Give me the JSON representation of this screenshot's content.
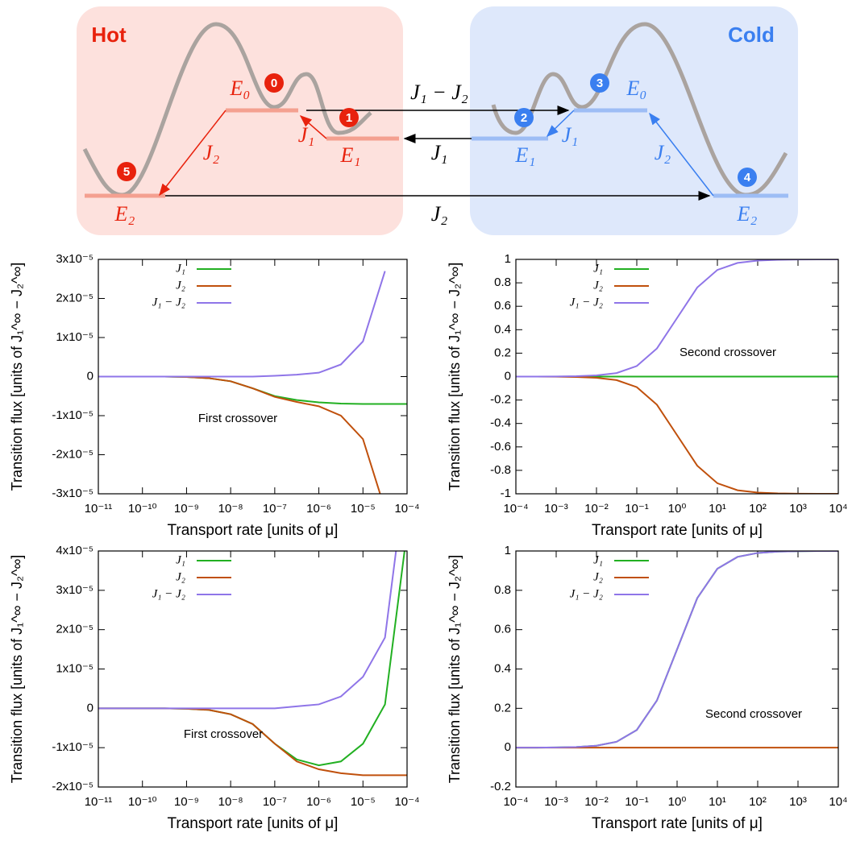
{
  "diagram": {
    "hot_label": "Hot",
    "cold_label": "Cold",
    "states": [
      "0",
      "1",
      "2",
      "3",
      "4",
      "5"
    ],
    "hot_levels": [
      "E₀",
      "E₁",
      "E₂"
    ],
    "cold_levels": [
      "E₀",
      "E₁",
      "E₂"
    ],
    "hot_fluxes": [
      "J₁",
      "J₂"
    ],
    "cold_fluxes": [
      "J₁",
      "J₂"
    ],
    "transport_fluxes": [
      "J₁ − J₂",
      "J₁",
      "J₂"
    ]
  },
  "chart_data": [
    {
      "type": "line",
      "xscale": "log",
      "x_label": "Transport rate [units of μ]",
      "y_label": "Transition flux [units of J₁^∞ − J₂^∞]",
      "annotation": "First crossover",
      "xlim": [
        1e-11,
        0.0001
      ],
      "ylim": [
        -3e-05,
        3e-05
      ],
      "xticks": [
        {
          "value": 1e-11,
          "label": "10⁻¹¹"
        },
        {
          "value": 1e-10,
          "label": "10⁻¹⁰"
        },
        {
          "value": 1e-09,
          "label": "10⁻⁹"
        },
        {
          "value": 1e-08,
          "label": "10⁻⁸"
        },
        {
          "value": 1e-07,
          "label": "10⁻⁷"
        },
        {
          "value": 1e-06,
          "label": "10⁻⁶"
        },
        {
          "value": 1e-05,
          "label": "10⁻⁵"
        },
        {
          "value": 0.0001,
          "label": "10⁻⁴"
        }
      ],
      "yticks": [
        {
          "value": -3e-05,
          "label": "-3x10⁻⁵"
        },
        {
          "value": -2e-05,
          "label": "-2x10⁻⁵"
        },
        {
          "value": -1e-05,
          "label": "-1x10⁻⁵"
        },
        0,
        {
          "value": 1e-05,
          "label": "1x10⁻⁵"
        },
        {
          "value": 2e-05,
          "label": "2x10⁻⁵"
        },
        {
          "value": 3e-05,
          "label": "3x10⁻⁵"
        }
      ],
      "x": [
        1e-11,
        3.16e-11,
        1e-10,
        3.16e-10,
        1e-09,
        3.16e-09,
        1e-08,
        3.16e-08,
        1e-07,
        3.16e-07,
        1e-06,
        3.16e-06,
        1e-05,
        3.16e-05,
        0.0001
      ],
      "series": [
        {
          "name": "J₁",
          "color": "#22b022",
          "values": [
            0,
            0,
            0,
            0,
            -1e-07,
            -4e-07,
            -1.2e-06,
            -3e-06,
            -5e-06,
            -6e-06,
            -6.6e-06,
            -6.9e-06,
            -7e-06,
            -7e-06,
            -7e-06
          ]
        },
        {
          "name": "J₂",
          "color": "#c0500c",
          "values": [
            0,
            0,
            0,
            0,
            -1e-07,
            -4e-07,
            -1.2e-06,
            -3e-06,
            -5.2e-06,
            -6.5e-06,
            -7.6e-06,
            -1e-05,
            -1.6e-05,
            -3.4e-05,
            null
          ]
        },
        {
          "name": "J₁ − J₂",
          "color": "#8f75e8",
          "values": [
            0,
            0,
            0,
            0,
            0,
            0,
            0,
            0,
            2e-07,
            5e-07,
            1e-06,
            3.1e-06,
            9e-06,
            2.7e-05,
            null
          ]
        }
      ]
    },
    {
      "type": "line",
      "xscale": "log",
      "x_label": "Transport rate [units of μ]",
      "y_label": "Transition flux [units of J₁^∞ − J₂^∞]",
      "annotation": "Second crossover",
      "xlim": [
        0.0001,
        10000.0
      ],
      "ylim": [
        -1,
        1
      ],
      "xticks": [
        {
          "value": 0.0001,
          "label": "10⁻⁴"
        },
        {
          "value": 0.001,
          "label": "10⁻³"
        },
        {
          "value": 0.01,
          "label": "10⁻²"
        },
        {
          "value": 0.1,
          "label": "10⁻¹"
        },
        {
          "value": 1,
          "label": "10⁰"
        },
        {
          "value": 10,
          "label": "10¹"
        },
        {
          "value": 100,
          "label": "10²"
        },
        {
          "value": 1000,
          "label": "10³"
        },
        {
          "value": 10000,
          "label": "10⁴"
        }
      ],
      "yticks": [
        -1,
        -0.8,
        -0.6,
        -0.4,
        -0.2,
        0,
        0.2,
        0.4,
        0.6,
        0.8,
        1
      ],
      "x": [
        0.0001,
        0.000316,
        0.001,
        0.00316,
        0.01,
        0.0316,
        0.1,
        0.316,
        1,
        3.16,
        10,
        31.6,
        100,
        316,
        1000,
        3162,
        10000
      ],
      "series": [
        {
          "name": "J₁",
          "color": "#22b022",
          "values": [
            0,
            0,
            0,
            0,
            0,
            0,
            0,
            0,
            0,
            0,
            0,
            0,
            0,
            0,
            0,
            0,
            0
          ]
        },
        {
          "name": "J₂",
          "color": "#c0500c",
          "values": [
            0,
            -0.0003,
            -0.001,
            -0.003,
            -0.01,
            -0.03,
            -0.09,
            -0.24,
            -0.5,
            -0.76,
            -0.91,
            -0.97,
            -0.99,
            -0.997,
            -0.999,
            -1,
            -1
          ]
        },
        {
          "name": "J₁ − J₂",
          "color": "#8f75e8",
          "values": [
            0,
            0.0003,
            0.001,
            0.003,
            0.01,
            0.03,
            0.09,
            0.24,
            0.5,
            0.76,
            0.91,
            0.97,
            0.99,
            0.997,
            0.999,
            1,
            1
          ]
        }
      ]
    },
    {
      "type": "line",
      "xscale": "log",
      "x_label": "Transport rate [units of μ]",
      "y_label": "Transition flux [units of J₁^∞ − J₂^∞]",
      "annotation": "First crossover",
      "xlim": [
        1e-11,
        0.0001
      ],
      "ylim": [
        -2e-05,
        4e-05
      ],
      "xticks": [
        {
          "value": 1e-11,
          "label": "10⁻¹¹"
        },
        {
          "value": 1e-10,
          "label": "10⁻¹⁰"
        },
        {
          "value": 1e-09,
          "label": "10⁻⁹"
        },
        {
          "value": 1e-08,
          "label": "10⁻⁸"
        },
        {
          "value": 1e-07,
          "label": "10⁻⁷"
        },
        {
          "value": 1e-06,
          "label": "10⁻⁶"
        },
        {
          "value": 1e-05,
          "label": "10⁻⁵"
        },
        {
          "value": 0.0001,
          "label": "10⁻⁴"
        }
      ],
      "yticks": [
        {
          "value": -2e-05,
          "label": "-2x10⁻⁵"
        },
        {
          "value": -1e-05,
          "label": "-1x10⁻⁵"
        },
        0,
        {
          "value": 1e-05,
          "label": "1x10⁻⁵"
        },
        {
          "value": 2e-05,
          "label": "2x10⁻⁵"
        },
        {
          "value": 3e-05,
          "label": "3x10⁻⁵"
        },
        {
          "value": 4e-05,
          "label": "4x10⁻⁵"
        }
      ],
      "x": [
        1e-11,
        3.16e-11,
        1e-10,
        3.16e-10,
        1e-09,
        3.16e-09,
        1e-08,
        3.16e-08,
        1e-07,
        3.16e-07,
        1e-06,
        3.16e-06,
        1e-05,
        3.16e-05,
        0.0001
      ],
      "series": [
        {
          "name": "J₁",
          "color": "#22b022",
          "values": [
            0,
            0,
            0,
            0,
            -1e-07,
            -4e-07,
            -1.5e-06,
            -4e-06,
            -9e-06,
            -1.3e-05,
            -1.45e-05,
            -1.35e-05,
            -9e-06,
            1e-06,
            4.5e-05
          ]
        },
        {
          "name": "J₂",
          "color": "#c0500c",
          "values": [
            0,
            0,
            0,
            0,
            -1e-07,
            -4e-07,
            -1.5e-06,
            -4e-06,
            -9e-06,
            -1.35e-05,
            -1.55e-05,
            -1.65e-05,
            -1.7e-05,
            -1.7e-05,
            -1.7e-05
          ]
        },
        {
          "name": "J₁ − J₂",
          "color": "#8f75e8",
          "values": [
            0,
            0,
            0,
            0,
            0,
            0,
            0,
            0,
            0,
            5e-07,
            1e-06,
            3e-06,
            8e-06,
            1.8e-05,
            6.2e-05
          ]
        }
      ]
    },
    {
      "type": "line",
      "xscale": "log",
      "x_label": "Transport rate [units of μ]",
      "y_label": "Transition flux [units of J₁^∞ − J₂^∞]",
      "annotation": "Second crossover",
      "xlim": [
        0.0001,
        10000.0
      ],
      "ylim": [
        -0.2,
        1
      ],
      "xticks": [
        {
          "value": 0.0001,
          "label": "10⁻⁴"
        },
        {
          "value": 0.001,
          "label": "10⁻³"
        },
        {
          "value": 0.01,
          "label": "10⁻²"
        },
        {
          "value": 0.1,
          "label": "10⁻¹"
        },
        {
          "value": 1,
          "label": "10⁰"
        },
        {
          "value": 10,
          "label": "10¹"
        },
        {
          "value": 100,
          "label": "10²"
        },
        {
          "value": 1000,
          "label": "10³"
        },
        {
          "value": 10000,
          "label": "10⁴"
        }
      ],
      "yticks": [
        -0.2,
        0,
        0.2,
        0.4,
        0.6,
        0.8,
        1
      ],
      "x": [
        0.0001,
        0.000316,
        0.001,
        0.00316,
        0.01,
        0.0316,
        0.1,
        0.316,
        1,
        3.16,
        10,
        31.6,
        100,
        316,
        1000,
        3162,
        10000
      ],
      "series": [
        {
          "name": "J₁",
          "color": "#22b022",
          "values": [
            0,
            0.0003,
            0.001,
            0.003,
            0.01,
            0.03,
            0.09,
            0.24,
            0.5,
            0.76,
            0.91,
            0.97,
            0.99,
            0.997,
            0.999,
            1,
            1
          ]
        },
        {
          "name": "J₂",
          "color": "#c0500c",
          "values": [
            0,
            0,
            0,
            0,
            0,
            0,
            0,
            0,
            0,
            0,
            0,
            0,
            0,
            0,
            0,
            0,
            0
          ]
        },
        {
          "name": "J₁ − J₂",
          "color": "#8f75e8",
          "values": [
            0,
            0.0003,
            0.001,
            0.003,
            0.01,
            0.03,
            0.09,
            0.24,
            0.5,
            0.76,
            0.91,
            0.97,
            0.99,
            0.997,
            0.999,
            1,
            1
          ]
        }
      ]
    }
  ]
}
